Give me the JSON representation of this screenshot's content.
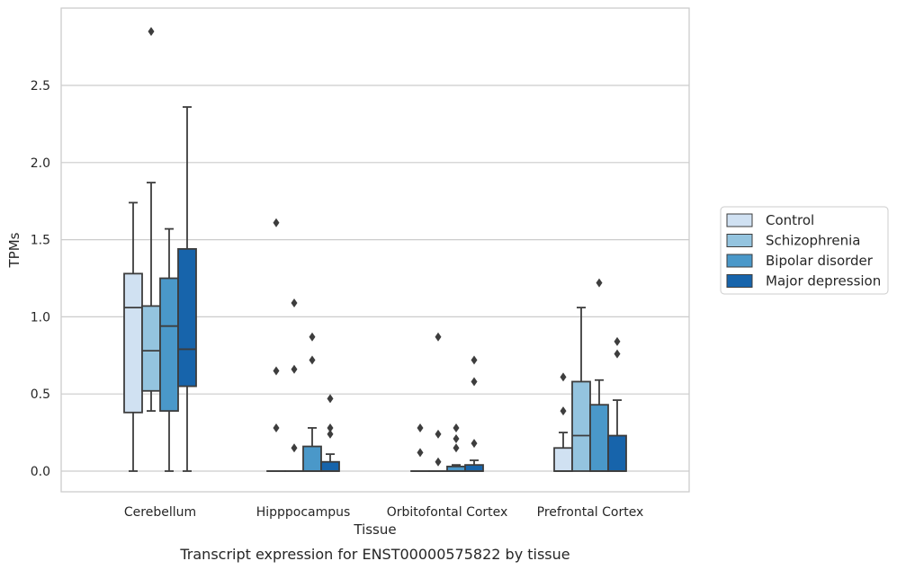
{
  "chart_data": {
    "type": "box",
    "xlabel": "Tissue",
    "ylabel": "TPMs",
    "caption": "Transcript expression for ENST00000575822 by tissue",
    "ylim": [
      -0.14,
      2.9
    ],
    "yticks": [
      "0.0",
      "0.5",
      "1.0",
      "1.5",
      "2.0",
      "2.5"
    ],
    "grid": true,
    "legend_position": "right",
    "categories": [
      "Cerebellum",
      "Hipppocampus",
      "Orbitofontal Cortex",
      "Prefrontal Cortex"
    ],
    "series": [
      {
        "name": "Control",
        "color": "#d0e1f2"
      },
      {
        "name": "Schizophrenia",
        "color": "#94c4df"
      },
      {
        "name": "Bipolar disorder",
        "color": "#4a98c9"
      },
      {
        "name": "Major depression",
        "color": "#1764ab"
      }
    ],
    "boxes": [
      [
        {
          "q1": 0.38,
          "median": 1.06,
          "q3": 1.28,
          "whislo": 0.0,
          "whishi": 1.74,
          "fliers": []
        },
        {
          "q1": 0.52,
          "median": 0.78,
          "q3": 1.07,
          "whislo": 0.39,
          "whishi": 1.87,
          "fliers": [
            2.85
          ]
        },
        {
          "q1": 0.39,
          "median": 0.94,
          "q3": 1.25,
          "whislo": 0.0,
          "whishi": 1.57,
          "fliers": []
        },
        {
          "q1": 0.55,
          "median": 0.79,
          "q3": 1.44,
          "whislo": 0.0,
          "whishi": 2.36,
          "fliers": []
        }
      ],
      [
        {
          "q1": 0.0,
          "median": 0.0,
          "q3": 0.0,
          "whislo": 0.0,
          "whishi": 0.0,
          "fliers": [
            1.61,
            0.65,
            0.28
          ]
        },
        {
          "q1": 0.0,
          "median": 0.0,
          "q3": 0.0,
          "whislo": 0.0,
          "whishi": 0.0,
          "fliers": [
            1.09,
            0.66,
            0.15
          ]
        },
        {
          "q1": 0.0,
          "median": 0.0,
          "q3": 0.16,
          "whislo": 0.0,
          "whishi": 0.28,
          "fliers": [
            0.87,
            0.72
          ]
        },
        {
          "q1": 0.0,
          "median": 0.0,
          "q3": 0.06,
          "whislo": 0.0,
          "whishi": 0.11,
          "fliers": [
            0.47,
            0.28,
            0.24
          ]
        }
      ],
      [
        {
          "q1": 0.0,
          "median": 0.0,
          "q3": 0.0,
          "whislo": 0.0,
          "whishi": 0.0,
          "fliers": [
            0.28,
            0.12
          ]
        },
        {
          "q1": 0.0,
          "median": 0.0,
          "q3": 0.0,
          "whislo": 0.0,
          "whishi": 0.0,
          "fliers": [
            0.87,
            0.24,
            0.06
          ]
        },
        {
          "q1": 0.0,
          "median": 0.0,
          "q3": 0.03,
          "whislo": 0.0,
          "whishi": 0.04,
          "fliers": [
            0.28,
            0.21,
            0.15
          ]
        },
        {
          "q1": 0.0,
          "median": 0.0,
          "q3": 0.04,
          "whislo": 0.0,
          "whishi": 0.07,
          "fliers": [
            0.72,
            0.58,
            0.18
          ]
        }
      ],
      [
        {
          "q1": 0.0,
          "median": 0.0,
          "q3": 0.15,
          "whislo": 0.0,
          "whishi": 0.25,
          "fliers": [
            0.61,
            0.39
          ]
        },
        {
          "q1": 0.0,
          "median": 0.23,
          "q3": 0.58,
          "whislo": 0.0,
          "whishi": 1.06,
          "fliers": []
        },
        {
          "q1": 0.0,
          "median": 0.0,
          "q3": 0.43,
          "whislo": 0.0,
          "whishi": 0.59,
          "fliers": [
            1.22
          ]
        },
        {
          "q1": 0.0,
          "median": 0.0,
          "q3": 0.23,
          "whislo": 0.0,
          "whishi": 0.46,
          "fliers": [
            0.84,
            0.76
          ]
        }
      ]
    ]
  }
}
